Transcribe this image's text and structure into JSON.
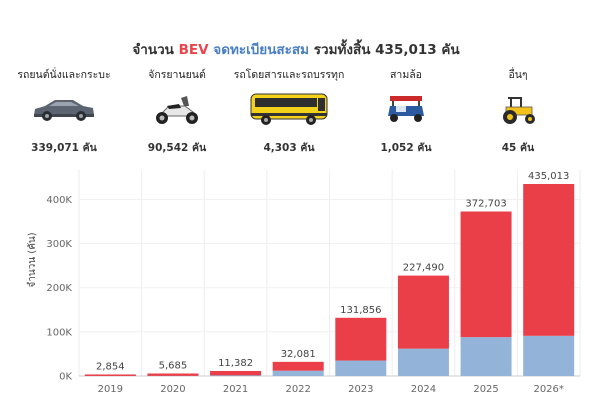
{
  "header": {
    "title_prefix": "จำนวน",
    "title_bev": "BEV",
    "title_registered": "จดทะเบียนสะสม",
    "title_suffix": "รวมทั้งสิ้น 435,013 คัน"
  },
  "categories": [
    {
      "label": "รถยนต์นั่งและกระบะ",
      "count": "339,071 คัน",
      "icon": "car-icon"
    },
    {
      "label": "จักรยานยนต์",
      "count": "90,542 คัน",
      "icon": "motorcycle-icon"
    },
    {
      "label": "รถโดยสารและรถบรรทุก",
      "count": "4,303 คัน",
      "icon": "bus-icon"
    },
    {
      "label": "สามล้อ",
      "count": "1,052 คัน",
      "icon": "tuktuk-icon"
    },
    {
      "label": "อื่นๆ",
      "count": "45 คัน",
      "icon": "tractor-icon"
    }
  ],
  "chart_data": {
    "type": "bar",
    "stacked": true,
    "categories": [
      "2019",
      "2020",
      "2021",
      "2022",
      "2023",
      "2024",
      "2025",
      "2026*"
    ],
    "series": [
      {
        "color": "#93b3d9",
        "values": [
          100,
          300,
          1500,
          12000,
          35000,
          62000,
          88000,
          91000
        ]
      },
      {
        "color": "#ea3f49",
        "values": [
          2754,
          5385,
          9882,
          20081,
          96856,
          165490,
          284703,
          344013
        ]
      }
    ],
    "totals": [
      2854,
      5685,
      11382,
      32081,
      131856,
      227490,
      372703,
      435013
    ],
    "total_labels": [
      "2,854",
      "5,685",
      "11,382",
      "32,081",
      "131,856",
      "227,490",
      "372,703",
      "435,013"
    ],
    "ylabel": "จำนวน (คัน)",
    "yticks": [
      0,
      100000,
      200000,
      300000,
      400000
    ],
    "ytick_labels": [
      "0K",
      "100K",
      "200K",
      "300K",
      "400K"
    ],
    "ylim": [
      0,
      435013
    ],
    "grid": true
  }
}
